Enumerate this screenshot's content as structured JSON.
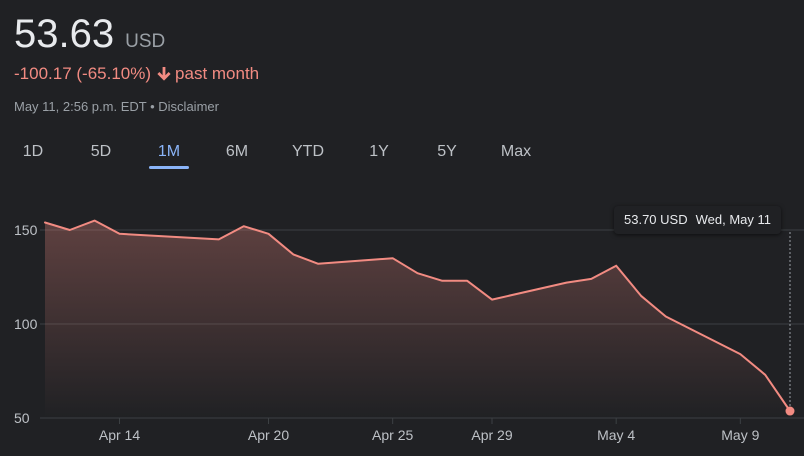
{
  "quote": {
    "price": "53.63",
    "currency": "USD",
    "change_text": "-100.17 (-65.10%)",
    "period_text": "past month",
    "timestamp": "May 11, 2:56 p.m. EDT",
    "separator": "•",
    "disclaimer": "Disclaimer"
  },
  "range_tabs": [
    {
      "label": "1D",
      "active": false
    },
    {
      "label": "5D",
      "active": false
    },
    {
      "label": "1M",
      "active": true
    },
    {
      "label": "6M",
      "active": false
    },
    {
      "label": "YTD",
      "active": false
    },
    {
      "label": "1Y",
      "active": false
    },
    {
      "label": "5Y",
      "active": false
    },
    {
      "label": "Max",
      "active": false
    }
  ],
  "tooltip": {
    "value": "53.70 USD",
    "date": "Wed, May 11"
  },
  "colors": {
    "background": "#202124",
    "negative": "#f28b82",
    "accent": "#8ab4f8",
    "grid": "#3c4043",
    "muted_text": "#9aa0a6"
  },
  "icons": {
    "change_direction": "arrow-down-icon"
  },
  "chart_data": {
    "type": "area",
    "x": [
      "Apr 11",
      "Apr 12",
      "Apr 13",
      "Apr 14",
      "Apr 18",
      "Apr 19",
      "Apr 20",
      "Apr 21",
      "Apr 22",
      "Apr 25",
      "Apr 26",
      "Apr 27",
      "Apr 28",
      "Apr 29",
      "May 2",
      "May 3",
      "May 4",
      "May 5",
      "May 6",
      "May 9",
      "May 10",
      "May 11"
    ],
    "series": [
      {
        "values": [
          154,
          150,
          155,
          148,
          145,
          152,
          148,
          137,
          132,
          135,
          127,
          123,
          123,
          113,
          122,
          124,
          131,
          115,
          104,
          84,
          73,
          53.7
        ]
      }
    ],
    "yticks": [
      150,
      100,
      50
    ],
    "xtick_labels": [
      "Apr 14",
      "Apr 20",
      "Apr 25",
      "Apr 29",
      "May 4",
      "May 9"
    ],
    "xtick_positions": [
      "Apr 14",
      "Apr 20",
      "Apr 25",
      "Apr 29",
      "May 4",
      "May 9"
    ],
    "ylim": [
      50,
      160
    ],
    "grid": true,
    "title": "",
    "xlabel": "",
    "ylabel": ""
  }
}
